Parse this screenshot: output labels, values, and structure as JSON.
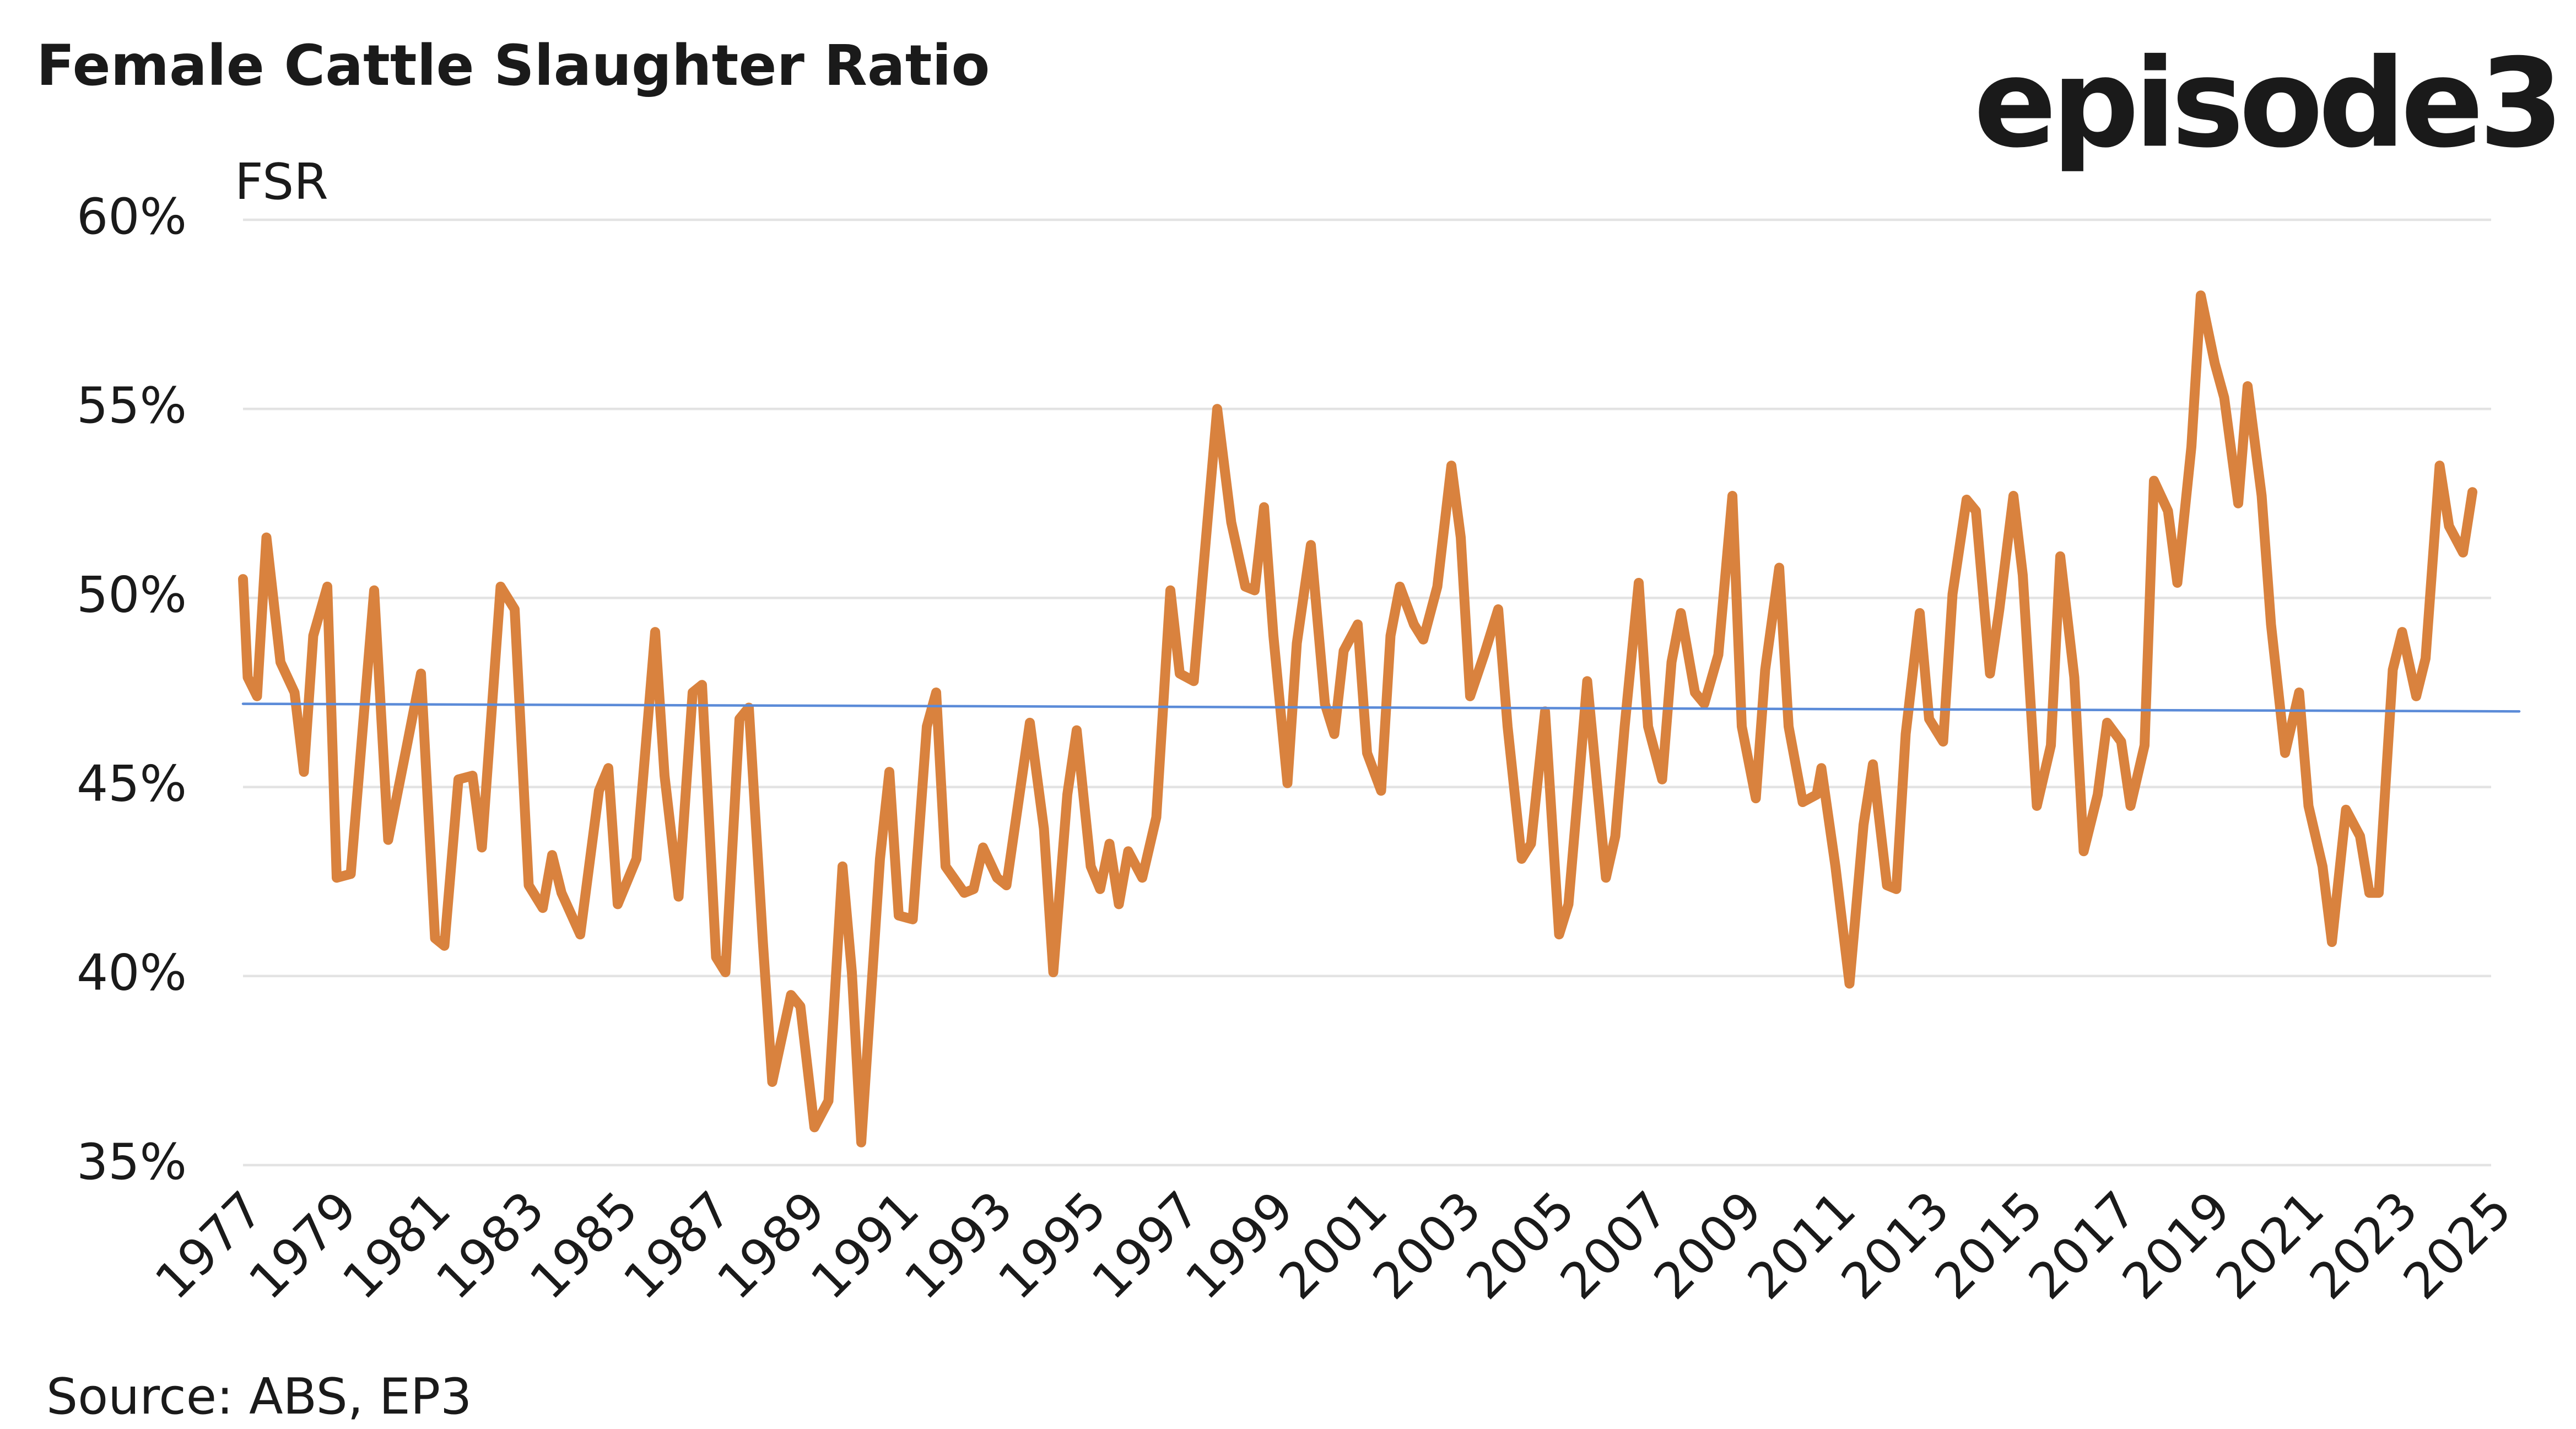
{
  "chart_data": {
    "type": "line",
    "title": "Female Cattle Slaughter Ratio",
    "logo": "episode3",
    "y_label": "FSR",
    "source": "Source: ABS, EP3",
    "color": "#d9823e",
    "x": [
      1977.0,
      1977.1,
      1977.3,
      1977.5,
      1977.8,
      1978.1,
      1978.3,
      1978.5,
      1978.8,
      1979.0,
      1979.3,
      1979.8,
      1980.1,
      1980.5,
      1980.8,
      1981.1,
      1981.3,
      1981.6,
      1981.9,
      1982.1,
      1982.5,
      1982.8,
      1983.1,
      1983.4,
      1983.6,
      1983.8,
      1984.2,
      1984.6,
      1984.8,
      1985.0,
      1985.4,
      1985.8,
      1986.0,
      1986.3,
      1986.6,
      1986.8,
      1987.1,
      1987.3,
      1987.6,
      1987.8,
      1988.1,
      1988.3,
      1988.7,
      1988.9,
      1989.2,
      1989.5,
      1989.8,
      1990.0,
      1990.2,
      1990.6,
      1990.8,
      1991.0,
      1991.3,
      1991.6,
      1991.8,
      1992.0,
      1992.4,
      1992.6,
      1992.8,
      1993.1,
      1993.3,
      1993.8,
      1994.1,
      1994.3,
      1994.6,
      1994.8,
      1995.1,
      1995.3,
      1995.5,
      1995.7,
      1995.9,
      1996.2,
      1996.5,
      1996.8,
      1997.0,
      1997.3,
      1997.5,
      1997.8,
      1998.1,
      1998.4,
      1998.6,
      1998.8,
      1999.0,
      1999.3,
      1999.5,
      1999.8,
      2000.1,
      2000.3,
      2000.5,
      2000.8,
      2001.0,
      2001.3,
      2001.5,
      2001.7,
      2002.0,
      2002.2,
      2002.5,
      2002.8,
      2003.0,
      2003.2,
      2003.5,
      2003.8,
      2004.0,
      2004.3,
      2004.5,
      2004.8,
      2005.1,
      2005.3,
      2005.5,
      2005.7,
      2006.1,
      2006.3,
      2006.5,
      2006.8,
      2007.0,
      2007.3,
      2007.5,
      2007.7,
      2008.0,
      2008.2,
      2008.5,
      2008.8,
      2009.0,
      2009.3,
      2009.5,
      2009.8,
      2010.0,
      2010.3,
      2010.6,
      2010.7,
      2011.0,
      2011.3,
      2011.6,
      2011.8,
      2012.1,
      2012.3,
      2012.5,
      2012.8,
      2013.0,
      2013.3,
      2013.5,
      2013.8,
      2014.0,
      2014.3,
      2014.5,
      2014.8,
      2015.0,
      2015.3,
      2015.6,
      2015.8,
      2016.1,
      2016.3,
      2016.6,
      2016.8,
      2017.1,
      2017.3,
      2017.6,
      2017.8,
      2018.1,
      2018.3,
      2018.6,
      2018.8,
      2019.1,
      2019.3,
      2019.6,
      2019.8,
      2020.1,
      2020.3,
      2020.6,
      2020.9,
      2021.1,
      2021.4,
      2021.6,
      2021.9,
      2022.2,
      2022.4,
      2022.6,
      2022.9,
      2023.1,
      2023.4,
      2023.6,
      2023.9,
      2024.1,
      2024.4,
      2024.6
    ],
    "values": [
      50.5,
      47.9,
      47.4,
      51.6,
      48.3,
      47.5,
      45.4,
      49.0,
      50.3,
      42.6,
      42.7,
      50.2,
      43.6,
      46.1,
      48.0,
      41.0,
      40.8,
      45.2,
      45.3,
      43.4,
      50.3,
      49.7,
      42.4,
      41.8,
      43.2,
      42.2,
      41.1,
      44.9,
      45.5,
      41.9,
      43.1,
      49.1,
      45.3,
      42.1,
      47.5,
      47.7,
      40.5,
      40.1,
      46.8,
      47.1,
      40.9,
      37.2,
      39.5,
      39.2,
      36.0,
      36.7,
      42.9,
      40.1,
      35.6,
      43.1,
      45.4,
      41.6,
      41.5,
      46.6,
      47.5,
      42.9,
      42.2,
      42.3,
      43.4,
      42.6,
      42.4,
      46.7,
      43.9,
      40.1,
      44.8,
      46.5,
      42.9,
      42.3,
      43.5,
      41.9,
      43.3,
      42.6,
      44.2,
      50.2,
      48.0,
      47.8,
      50.7,
      55.0,
      52.0,
      50.3,
      50.2,
      52.4,
      49.0,
      45.1,
      48.8,
      51.4,
      47.2,
      46.4,
      48.6,
      49.3,
      45.9,
      44.9,
      49.0,
      50.3,
      49.3,
      48.9,
      50.3,
      53.5,
      51.6,
      47.4,
      48.5,
      49.7,
      46.6,
      43.1,
      43.5,
      47.0,
      41.1,
      41.9,
      44.8,
      47.8,
      42.6,
      43.7,
      46.6,
      50.4,
      46.6,
      45.2,
      48.3,
      49.6,
      47.5,
      47.2,
      48.5,
      52.7,
      46.6,
      44.7,
      48.1,
      50.8,
      46.6,
      44.6,
      44.8,
      45.5,
      42.9,
      39.8,
      44.0,
      45.6,
      42.4,
      42.3,
      46.4,
      49.6,
      46.8,
      46.2,
      50.1,
      52.6,
      52.3,
      48.0,
      49.7,
      52.7,
      50.6,
      44.5,
      46.1,
      51.1,
      47.9,
      43.3,
      44.8,
      46.7,
      46.2,
      44.5,
      46.1,
      53.1,
      52.3,
      50.4,
      54.0,
      58.0,
      56.2,
      55.3,
      52.5,
      55.6,
      52.7,
      49.3,
      45.9,
      47.5,
      44.5,
      42.9,
      40.9,
      44.4,
      43.7,
      42.2,
      42.2,
      48.1,
      49.1,
      47.4,
      48.4,
      53.5,
      51.9,
      51.2,
      52.8
    ],
    "reference_line": {
      "x": [
        1977,
        2025.6
      ],
      "values": [
        47.2,
        47.0
      ],
      "color": "#5b8bd8"
    },
    "xlim": [
      1977,
      2025
    ],
    "xticks": [
      1977,
      1979,
      1981,
      1983,
      1985,
      1987,
      1989,
      1991,
      1993,
      1995,
      1997,
      1999,
      2001,
      2003,
      2005,
      2007,
      2009,
      2011,
      2013,
      2015,
      2017,
      2019,
      2021,
      2023,
      2025
    ],
    "ylim": [
      35,
      60
    ],
    "yticks": [
      {
        "value": 35,
        "label": "35%"
      },
      {
        "value": 40,
        "label": "40%"
      },
      {
        "value": 45,
        "label": "45%"
      },
      {
        "value": 50,
        "label": "50%"
      },
      {
        "value": 55,
        "label": "55%"
      },
      {
        "value": 60,
        "label": "60%"
      }
    ],
    "grid": true
  }
}
